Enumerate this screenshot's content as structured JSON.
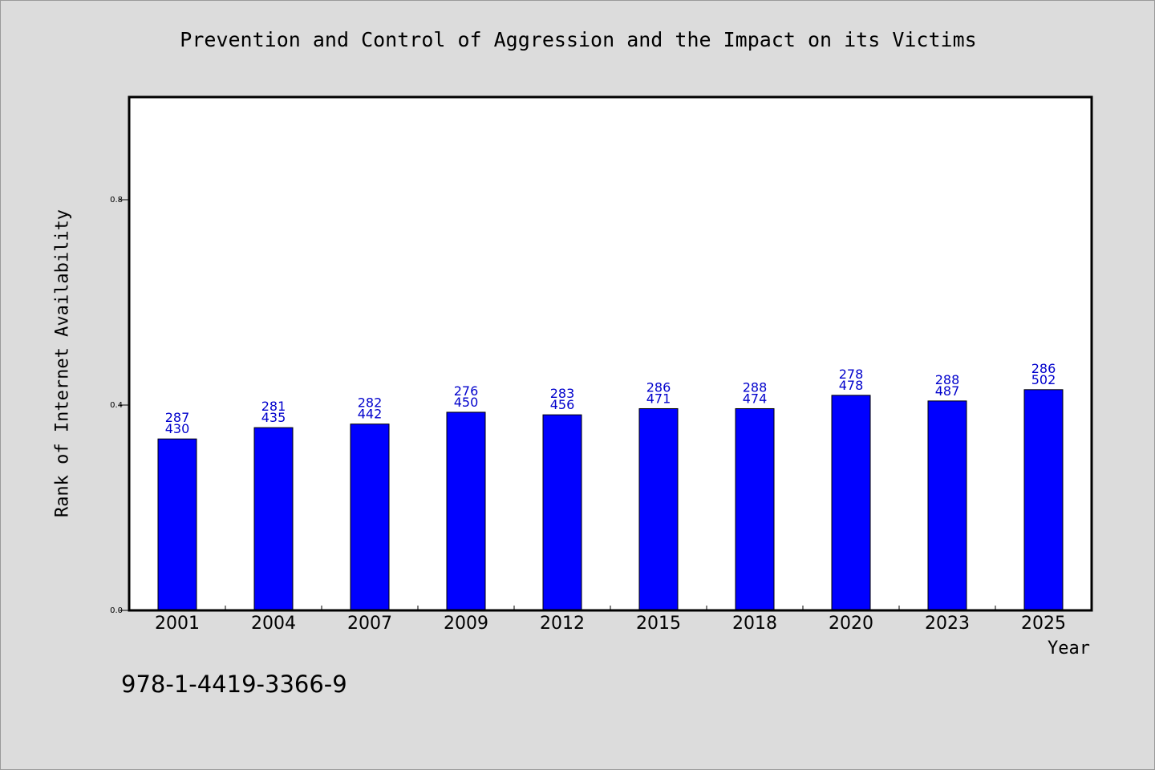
{
  "chart_data": {
    "type": "bar",
    "title": "Prevention and Control of Aggression and the Impact on its Victims",
    "xlabel": "Year",
    "ylabel": "Rank of Internet Availability",
    "categories": [
      "2001",
      "2004",
      "2007",
      "2009",
      "2012",
      "2015",
      "2018",
      "2020",
      "2023",
      "2025"
    ],
    "series": [
      {
        "values": [
          0.334,
          0.356,
          0.363,
          0.386,
          0.381,
          0.393,
          0.393,
          0.419,
          0.408,
          0.43
        ]
      }
    ],
    "bar_labels_top": [
      "287",
      "281",
      "282",
      "276",
      "283",
      "286",
      "288",
      "278",
      "288",
      "286"
    ],
    "bar_labels_bottom": [
      "430",
      "435",
      "442",
      "450",
      "456",
      "471",
      "474",
      "478",
      "487",
      "502"
    ],
    "ylim": [
      0.0,
      1.0
    ],
    "yticks": [
      "0.0",
      "0.4",
      "0.8"
    ],
    "grid": false,
    "legend": "none",
    "colors": {
      "bar": "#0000ff",
      "label": "#0000cc",
      "background": "#dcdcdc",
      "plot_bg": "#ffffff"
    }
  },
  "footer": {
    "isbn": "978-1-4419-3366-9"
  }
}
